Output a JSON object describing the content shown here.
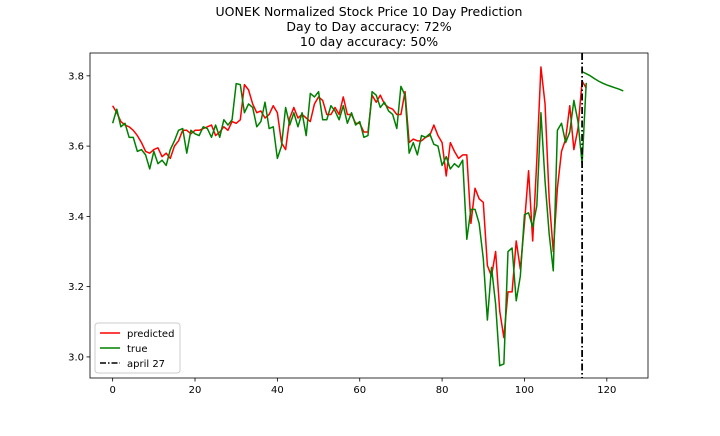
{
  "chart_data": {
    "type": "line",
    "title_lines": [
      "UONEK Normalized Stock Price 10 Day Prediction",
      "Day to Day accuracy: 72%",
      "10 day accuracy: 50%"
    ],
    "xlabel": "",
    "ylabel": "",
    "xlim": [
      -5.5,
      130
    ],
    "ylim": [
      2.94,
      3.865
    ],
    "x_ticks": [
      0,
      20,
      40,
      60,
      80,
      100,
      120
    ],
    "y_ticks": [
      3.0,
      3.2,
      3.4,
      3.6,
      3.8
    ],
    "y_tick_labels": [
      "3.0",
      "3.2",
      "3.4",
      "3.6",
      "3.8"
    ],
    "grid": false,
    "legend_position": "lower-left",
    "colors": {
      "predicted": "#ff0000",
      "true": "#008000",
      "marker": "#000000"
    },
    "series": [
      {
        "name": "predicted",
        "values": [
          3.715,
          3.695,
          3.67,
          3.66,
          3.655,
          3.645,
          3.63,
          3.61,
          3.585,
          3.58,
          3.59,
          3.595,
          3.57,
          3.58,
          3.565,
          3.6,
          3.615,
          3.645,
          3.645,
          3.635,
          3.645,
          3.645,
          3.65,
          3.655,
          3.66,
          3.63,
          3.64,
          3.655,
          3.645,
          3.67,
          3.665,
          3.675,
          3.775,
          3.76,
          3.72,
          3.695,
          3.7,
          3.68,
          3.69,
          3.715,
          3.695,
          3.61,
          3.59,
          3.68,
          3.71,
          3.68,
          3.69,
          3.68,
          3.67,
          3.72,
          3.74,
          3.73,
          3.69,
          3.69,
          3.71,
          3.69,
          3.74,
          3.69,
          3.69,
          3.665,
          3.665,
          3.64,
          3.64,
          3.745,
          3.725,
          3.745,
          3.72,
          3.71,
          3.705,
          3.69,
          3.69,
          3.755,
          3.61,
          3.62,
          3.615,
          3.615,
          3.625,
          3.63,
          3.66,
          3.63,
          3.61,
          3.515,
          3.61,
          3.585,
          3.565,
          3.575,
          3.575,
          3.38,
          3.48,
          3.45,
          3.44,
          3.26,
          3.23,
          3.3,
          3.13,
          3.055,
          3.185,
          3.185,
          3.33,
          3.25,
          3.38,
          3.53,
          3.33,
          3.56,
          3.825,
          3.72,
          3.45,
          3.3,
          3.48,
          3.585,
          3.62,
          3.715,
          3.59,
          3.65,
          3.785,
          3.765
        ]
      },
      {
        "name": "true",
        "values": [
          3.665,
          3.705,
          3.655,
          3.665,
          3.625,
          3.625,
          3.585,
          3.59,
          3.575,
          3.535,
          3.585,
          3.55,
          3.56,
          3.545,
          3.59,
          3.615,
          3.645,
          3.65,
          3.58,
          3.645,
          3.635,
          3.63,
          3.655,
          3.65,
          3.625,
          3.66,
          3.625,
          3.675,
          3.66,
          3.675,
          3.778,
          3.775,
          3.695,
          3.72,
          3.71,
          3.655,
          3.67,
          3.725,
          3.65,
          3.655,
          3.565,
          3.6,
          3.71,
          3.66,
          3.695,
          3.655,
          3.695,
          3.63,
          3.75,
          3.74,
          3.755,
          3.675,
          3.675,
          3.715,
          3.7,
          3.675,
          3.715,
          3.665,
          3.695,
          3.66,
          3.67,
          3.625,
          3.63,
          3.755,
          3.745,
          3.71,
          3.725,
          3.7,
          3.69,
          3.65,
          3.77,
          3.745,
          3.58,
          3.61,
          3.575,
          3.63,
          3.625,
          3.635,
          3.605,
          3.6,
          3.545,
          3.57,
          3.535,
          3.55,
          3.54,
          3.56,
          3.335,
          3.42,
          3.42,
          3.38,
          3.28,
          3.105,
          3.255,
          3.15,
          2.975,
          2.98,
          3.3,
          3.31,
          3.16,
          3.23,
          3.405,
          3.41,
          3.37,
          3.43,
          3.695,
          3.5,
          3.35,
          3.245,
          3.645,
          3.665,
          3.61,
          3.64,
          3.73,
          3.67,
          3.55,
          3.78
        ]
      },
      {
        "name": "forecast",
        "x": [
          114,
          115,
          116,
          117,
          118,
          119,
          120,
          121,
          122,
          123,
          124
        ],
        "values": [
          3.812,
          3.806,
          3.8,
          3.792,
          3.785,
          3.779,
          3.774,
          3.77,
          3.766,
          3.762,
          3.757
        ]
      }
    ],
    "vertical_marker": {
      "label": "april 27",
      "x": 114
    },
    "legend": [
      "predicted",
      "true",
      "april 27"
    ]
  }
}
